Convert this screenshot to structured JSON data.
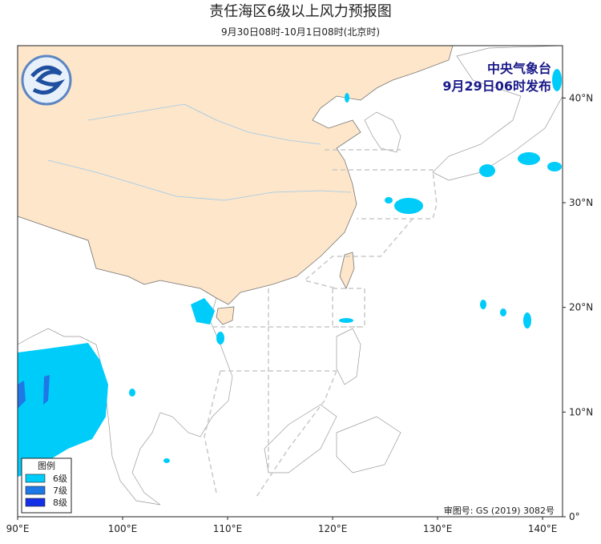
{
  "header": {
    "title": "责任海区6级以上风力预报图",
    "subtitle": "9月30日08时-10月1日08时(北京时)"
  },
  "issuer": {
    "agency": "中央气象台",
    "issued": "9月29日06时发布"
  },
  "legend": {
    "title": "图例",
    "items": [
      {
        "label": "6级",
        "color": "#00ccfa"
      },
      {
        "label": "7级",
        "color": "#1e78e6"
      },
      {
        "label": "8级",
        "color": "#1430e6"
      }
    ]
  },
  "map": {
    "xlim": [
      90,
      141.9
    ],
    "ylim": [
      0,
      45
    ],
    "xticks": [
      {
        "value": 90,
        "label": "90°E"
      },
      {
        "value": 100,
        "label": "100°E"
      },
      {
        "value": 110,
        "label": "110°E"
      },
      {
        "value": 120,
        "label": "120°E"
      },
      {
        "value": 130,
        "label": "130°E"
      },
      {
        "value": 140,
        "label": "140°E"
      }
    ],
    "yticks": [
      {
        "value": 0,
        "label": "0°"
      },
      {
        "value": 10,
        "label": "10°N"
      },
      {
        "value": 20,
        "label": "20°N"
      },
      {
        "value": 30,
        "label": "30°N"
      },
      {
        "value": 40,
        "label": "40°N"
      }
    ]
  },
  "approval": "审图号: GS (2019) 3082号"
}
